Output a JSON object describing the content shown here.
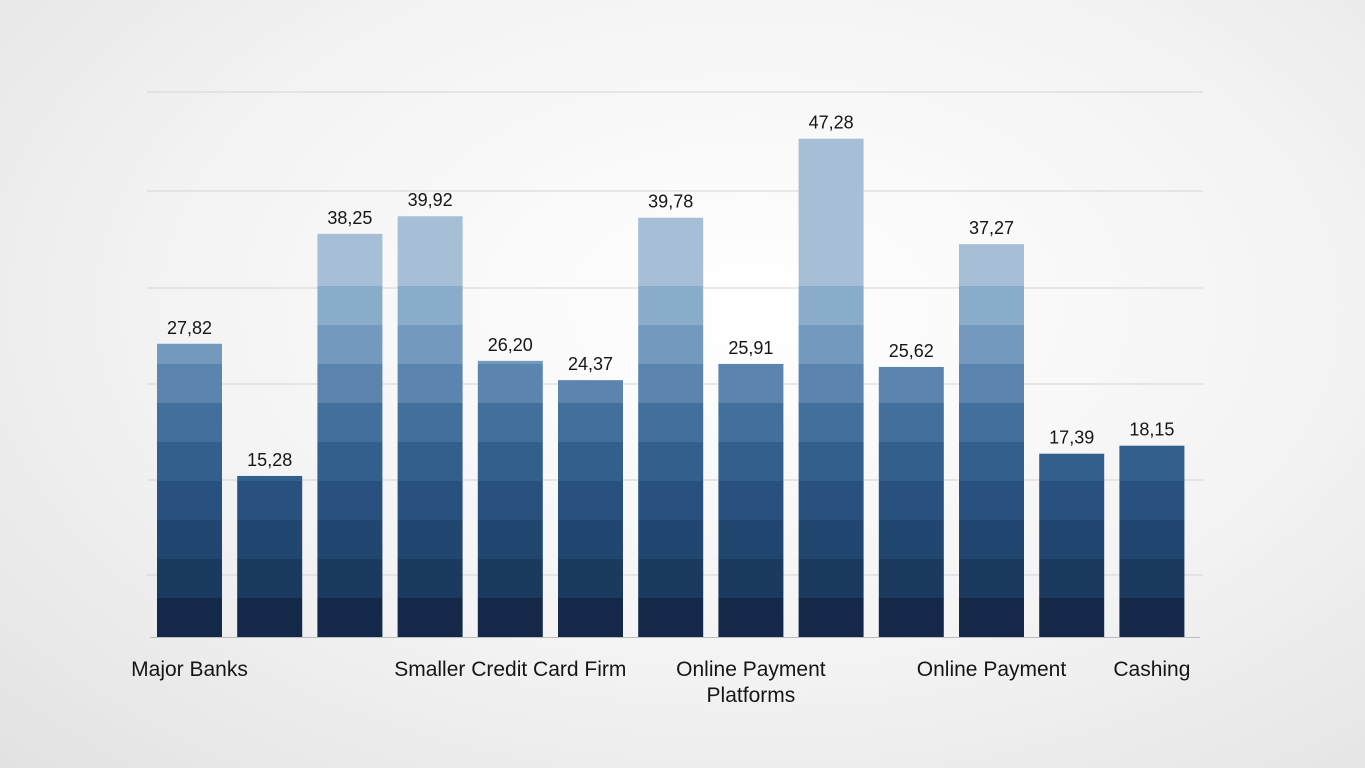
{
  "chart_data": {
    "type": "bar",
    "categories": [
      "Major Banks",
      null,
      null,
      null,
      "Smaller Credit Card Firm",
      null,
      null,
      "Online Payment\nPlatforms",
      null,
      null,
      "Online Payment",
      null,
      "Cashing"
    ],
    "values": [
      27.82,
      15.28,
      38.25,
      39.92,
      26.2,
      24.37,
      39.78,
      25.91,
      47.28,
      25.62,
      37.27,
      17.39,
      18.15
    ],
    "value_labels": [
      "27,82",
      "15,28",
      "38,25",
      "39,92",
      "26,20",
      "24,37",
      "39,78",
      "25,91",
      "47,28",
      "25,62",
      "37,27",
      "17,39",
      "18,15"
    ],
    "color": "#3f6f9f",
    "ylim": [
      0,
      50
    ]
  }
}
